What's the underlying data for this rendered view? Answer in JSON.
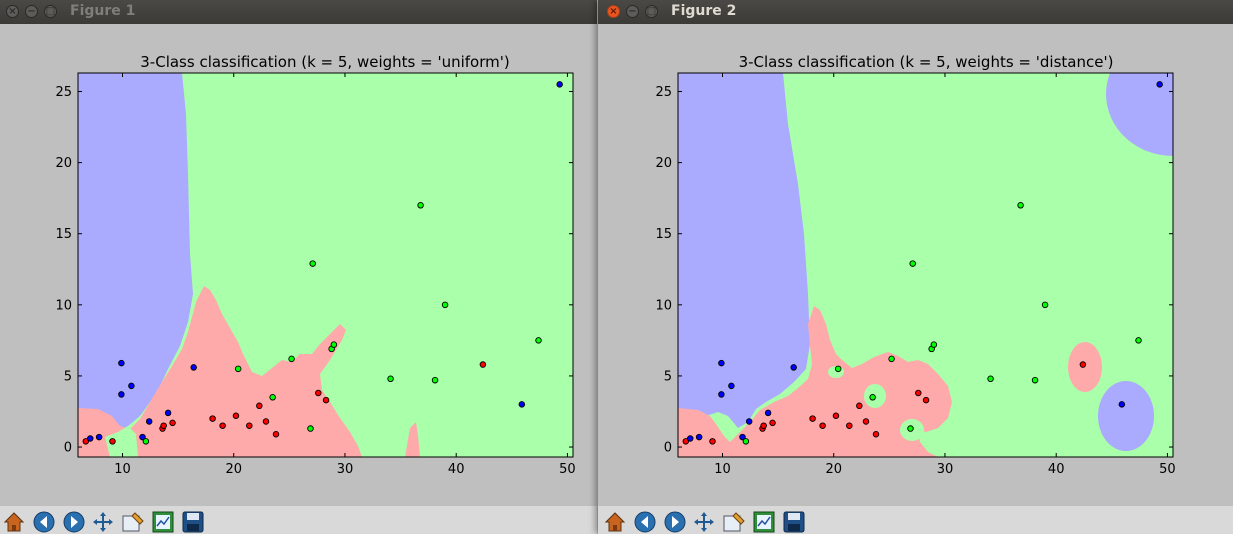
{
  "windows": [
    {
      "title": "Figure 1",
      "close_glyph": "×",
      "min_glyph": "−",
      "max_glyph": "□"
    },
    {
      "title": "Figure 2",
      "close_glyph": "×",
      "min_glyph": "−",
      "max_glyph": "□"
    }
  ],
  "toolbar_icons": [
    "home-icon",
    "back-arrow-icon",
    "forward-arrow-icon",
    "pan-icon",
    "zoom-icon",
    "configure-subplots-icon",
    "save-icon"
  ],
  "colors": {
    "region_class0": "#aaaaff",
    "region_class1": "#aaffaa",
    "region_class2": "#ffaaaa",
    "point_class0": "#0000ff",
    "point_class1": "#00ff00",
    "point_class2": "#ff0000"
  },
  "points": [
    {
      "x": 6.7,
      "y": 0.4,
      "c": 2
    },
    {
      "x": 7.1,
      "y": 0.6,
      "c": 0
    },
    {
      "x": 7.9,
      "y": 0.7,
      "c": 0
    },
    {
      "x": 9.1,
      "y": 0.4,
      "c": 2
    },
    {
      "x": 9.9,
      "y": 5.9,
      "c": 0
    },
    {
      "x": 9.9,
      "y": 3.7,
      "c": 0
    },
    {
      "x": 10.8,
      "y": 4.3,
      "c": 0
    },
    {
      "x": 11.8,
      "y": 0.7,
      "c": 0
    },
    {
      "x": 12.1,
      "y": 0.4,
      "c": 1
    },
    {
      "x": 12.4,
      "y": 1.8,
      "c": 0
    },
    {
      "x": 13.6,
      "y": 1.3,
      "c": 2
    },
    {
      "x": 13.7,
      "y": 1.5,
      "c": 2
    },
    {
      "x": 14.1,
      "y": 2.4,
      "c": 0
    },
    {
      "x": 14.5,
      "y": 1.7,
      "c": 2
    },
    {
      "x": 16.4,
      "y": 5.6,
      "c": 0
    },
    {
      "x": 18.1,
      "y": 2.0,
      "c": 2
    },
    {
      "x": 19.0,
      "y": 1.5,
      "c": 2
    },
    {
      "x": 20.2,
      "y": 2.2,
      "c": 2
    },
    {
      "x": 20.4,
      "y": 5.5,
      "c": 1
    },
    {
      "x": 21.4,
      "y": 1.5,
      "c": 2
    },
    {
      "x": 22.3,
      "y": 2.9,
      "c": 2
    },
    {
      "x": 22.9,
      "y": 1.8,
      "c": 2
    },
    {
      "x": 23.5,
      "y": 3.5,
      "c": 1
    },
    {
      "x": 23.8,
      "y": 0.9,
      "c": 2
    },
    {
      "x": 25.2,
      "y": 6.2,
      "c": 1
    },
    {
      "x": 26.9,
      "y": 1.3,
      "c": 1
    },
    {
      "x": 27.1,
      "y": 12.9,
      "c": 1
    },
    {
      "x": 27.6,
      "y": 3.8,
      "c": 2
    },
    {
      "x": 28.3,
      "y": 3.3,
      "c": 2
    },
    {
      "x": 28.8,
      "y": 6.9,
      "c": 1
    },
    {
      "x": 29.0,
      "y": 7.2,
      "c": 1
    },
    {
      "x": 34.1,
      "y": 4.8,
      "c": 1
    },
    {
      "x": 36.8,
      "y": 17.0,
      "c": 1
    },
    {
      "x": 38.1,
      "y": 4.7,
      "c": 1
    },
    {
      "x": 39.0,
      "y": 10.0,
      "c": 1
    },
    {
      "x": 42.4,
      "y": 5.8,
      "c": 2
    },
    {
      "x": 45.9,
      "y": 3.0,
      "c": 0
    },
    {
      "x": 47.4,
      "y": 7.5,
      "c": 1
    },
    {
      "x": 49.3,
      "y": 25.5,
      "c": 0
    }
  ],
  "chart_data": [
    {
      "type": "scatter",
      "title": "3-Class classification (k = 5, weights = 'uniform')",
      "xlabel": "",
      "ylabel": "",
      "xlim": [
        6,
        50.5
      ],
      "ylim": [
        -0.7,
        26.3
      ],
      "xticks": [
        "10",
        "20",
        "30",
        "40",
        "50"
      ],
      "xtick_values": [
        10,
        20,
        30,
        40,
        50
      ],
      "yticks": [
        "0",
        "5",
        "10",
        "15",
        "20",
        "25"
      ],
      "ytick_values": [
        0,
        5,
        10,
        15,
        20,
        25
      ],
      "grid": false,
      "legend": "none"
    },
    {
      "type": "scatter",
      "title": "3-Class classification (k = 5, weights = 'distance')",
      "xlabel": "",
      "ylabel": "",
      "xlim": [
        6,
        50.5
      ],
      "ylim": [
        -0.7,
        26.3
      ],
      "xticks": [
        "10",
        "20",
        "30",
        "40",
        "50"
      ],
      "xtick_values": [
        10,
        20,
        30,
        40,
        50
      ],
      "yticks": [
        "0",
        "5",
        "10",
        "15",
        "20",
        "25"
      ],
      "ytick_values": [
        0,
        5,
        10,
        15,
        20,
        25
      ],
      "grid": false,
      "legend": "none"
    }
  ]
}
